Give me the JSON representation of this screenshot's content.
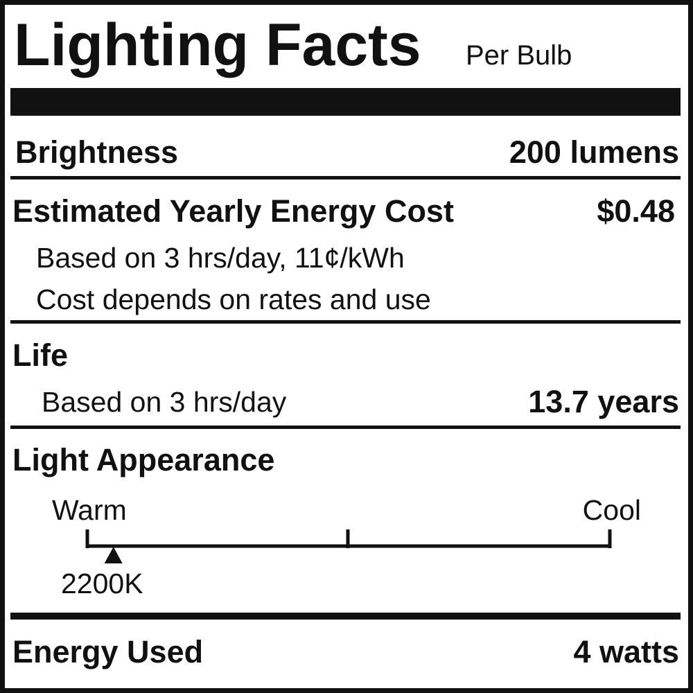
{
  "header": {
    "title": "Lighting Facts",
    "subtitle": "Per Bulb"
  },
  "brightness": {
    "label": "Brightness",
    "value": "200 lumens"
  },
  "energy_cost": {
    "label": "Estimated Yearly Energy Cost",
    "value": "$0.48",
    "note_1": "Based on 3 hrs/day, 11¢/kWh",
    "note_2": "Cost depends on rates and use"
  },
  "life": {
    "label": "Life",
    "note": "Based on 3 hrs/day",
    "value": "13.7 years"
  },
  "light_appearance": {
    "label": "Light Appearance",
    "warm_label": "Warm",
    "cool_label": "Cool",
    "value": "2200K",
    "scale_position": 0.05
  },
  "energy_used": {
    "label": "Energy Used",
    "value": "4 watts"
  },
  "colors": {
    "ink": "#111111",
    "background": "#ffffff"
  }
}
